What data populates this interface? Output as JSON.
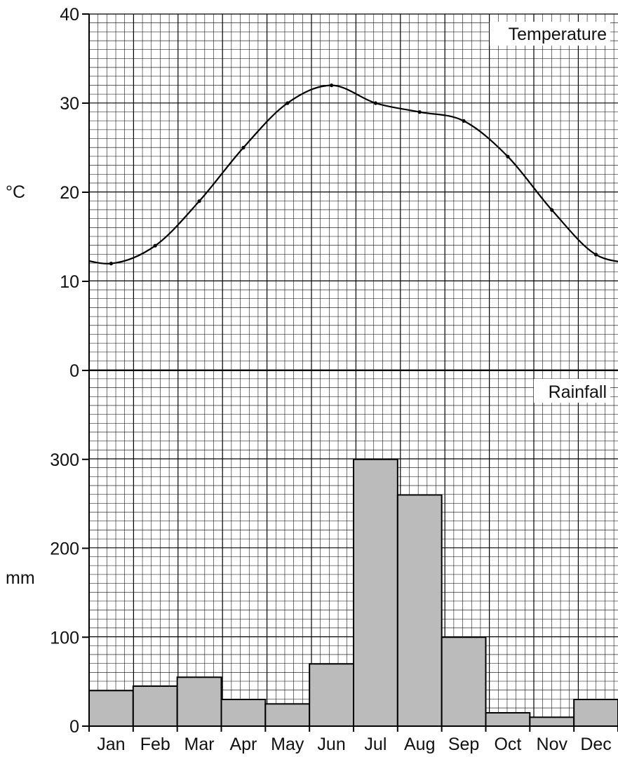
{
  "chart_data": [
    {
      "type": "line",
      "title": "Temperature",
      "ylabel": "°C",
      "ylim": [
        0,
        40
      ],
      "yticks": [
        "0",
        "10",
        "20",
        "30",
        "40"
      ],
      "categories": [
        "Jan",
        "Feb",
        "Mar",
        "Apr",
        "May",
        "Jun",
        "Jul",
        "Aug",
        "Sep",
        "Oct",
        "Nov",
        "Dec"
      ],
      "values": [
        12,
        14,
        19,
        25,
        30,
        32,
        30,
        29,
        28,
        24,
        18,
        13
      ],
      "grid": true,
      "line_color": "#000000"
    },
    {
      "type": "bar",
      "title": "Rainfall",
      "ylabel": "mm",
      "ylim": [
        0,
        400
      ],
      "yticks": [
        "0",
        "100",
        "200",
        "300"
      ],
      "categories": [
        "Jan",
        "Feb",
        "Mar",
        "Apr",
        "May",
        "Jun",
        "Jul",
        "Aug",
        "Sep",
        "Oct",
        "Nov",
        "Dec"
      ],
      "values": [
        40,
        45,
        55,
        30,
        25,
        70,
        300,
        260,
        100,
        15,
        10,
        30
      ],
      "grid": true,
      "bar_color": "#bbbbbb"
    }
  ]
}
